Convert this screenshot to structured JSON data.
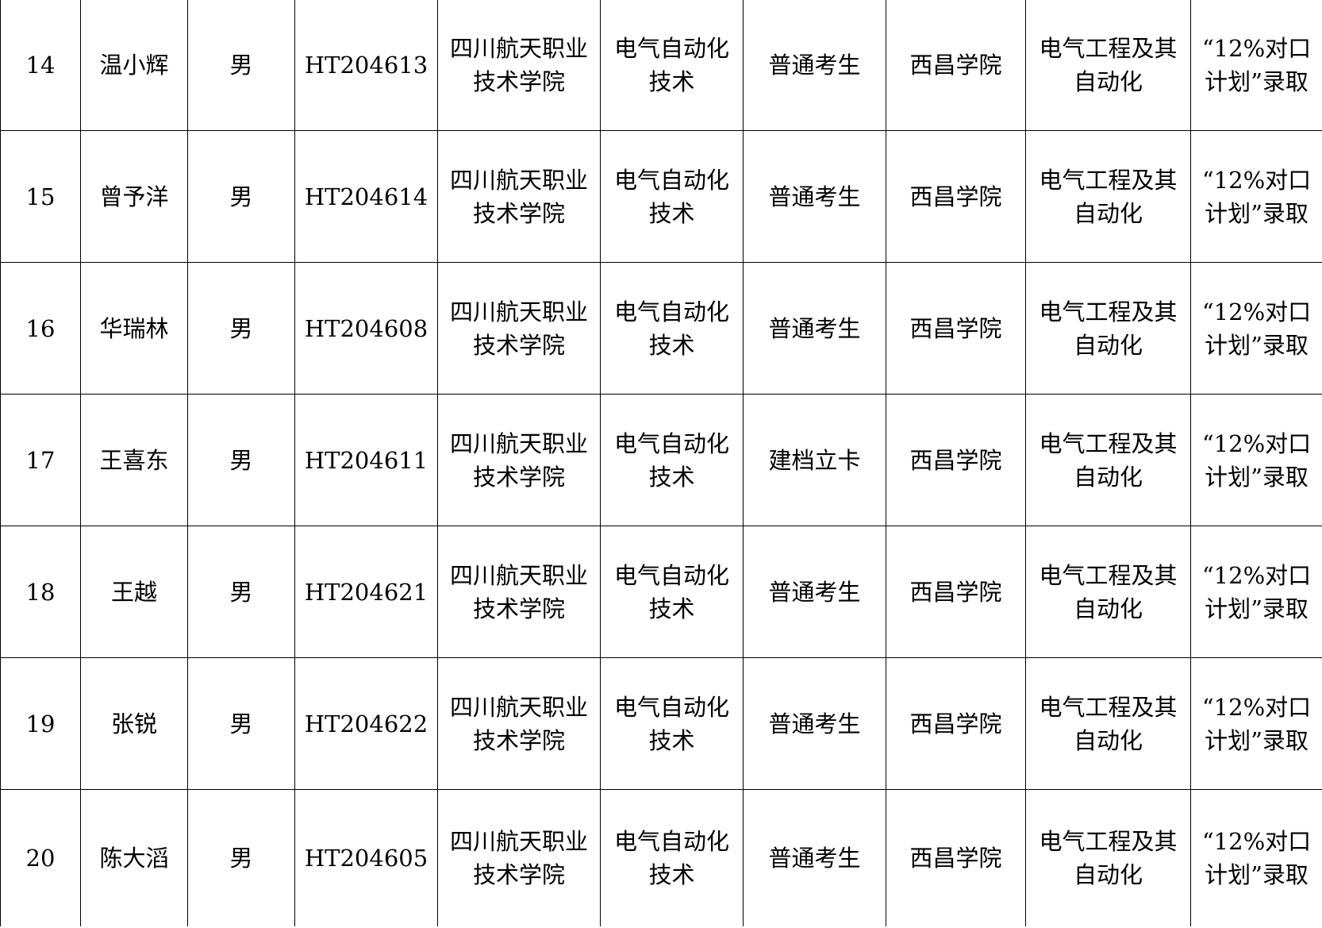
{
  "rows": [
    [
      "14",
      "温小辉",
      "男",
      "HT204613",
      "四川航天职业技术学院",
      "电气自动化技术",
      "普通考生",
      "西昌学院",
      "电气工程及其自动化",
      "“12%对口计划”录取"
    ],
    [
      "15",
      "曾予洋",
      "男",
      "HT204614",
      "四川航天职业技术学院",
      "电气自动化技术",
      "普通考生",
      "西昌学院",
      "电气工程及其自动化",
      "“12%对口计划”录取"
    ],
    [
      "16",
      "华瑞林",
      "男",
      "HT204608",
      "四川航天职业技术学院",
      "电气自动化技术",
      "普通考生",
      "西昌学院",
      "电气工程及其自动化",
      "“12%对口计划”录取"
    ],
    [
      "17",
      "王喜东",
      "男",
      "HT204611",
      "四川航天职业技术学院",
      "电气自动化技术",
      "建档立卡",
      "西昌学院",
      "电气工程及其自动化",
      "“12%对口计划”录取"
    ],
    [
      "18",
      "王越",
      "男",
      "HT204621",
      "四川航天职业技术学院",
      "电气自动化技术",
      "普通考生",
      "西昌学院",
      "电气工程及其自动化",
      "“12%对口计划”录取"
    ],
    [
      "19",
      "张锐",
      "男",
      "HT204622",
      "四川航天职业技术学院",
      "电气自动化技术",
      "普通考生",
      "西昌学院",
      "电气工程及其自动化",
      "“12%对口计划”录取"
    ],
    [
      "20",
      "陈大滔",
      "男",
      "HT204605",
      "四川航天职业技术学院",
      "电气自动化技术",
      "普通考生",
      "西昌学院",
      "电气工程及其自动化",
      "“12%对口计划”录取"
    ]
  ]
}
